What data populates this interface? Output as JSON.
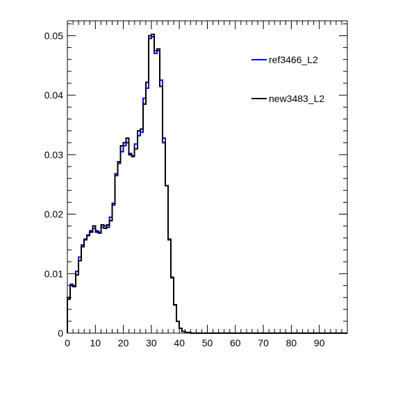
{
  "chart_data": {
    "type": "line",
    "title": "",
    "xlabel": "",
    "ylabel": "",
    "xlim": [
      0,
      100
    ],
    "ylim": [
      0,
      0.0525
    ],
    "grid": false,
    "legend_position": "top-right",
    "xticks": [
      0,
      10,
      20,
      30,
      40,
      50,
      60,
      70,
      80,
      90
    ],
    "yticks": [
      0,
      0.01,
      0.02,
      0.03,
      0.04,
      0.05
    ],
    "xtick_labels": [
      "0",
      "10",
      "20",
      "30",
      "40",
      "50",
      "60",
      "70",
      "80",
      "90"
    ],
    "ytick_labels": [
      "0",
      "0.01",
      "0.02",
      "0.03",
      "0.04",
      "0.05"
    ],
    "bin_width": 1,
    "x": [
      0,
      1,
      2,
      3,
      4,
      5,
      6,
      7,
      8,
      9,
      10,
      11,
      12,
      13,
      14,
      15,
      16,
      17,
      18,
      19,
      20,
      21,
      22,
      23,
      24,
      25,
      26,
      27,
      28,
      29,
      30,
      31,
      32,
      33,
      34,
      35,
      36,
      37,
      38,
      39,
      40,
      41,
      42,
      43,
      44,
      45,
      46,
      47,
      48,
      49
    ],
    "series": [
      {
        "name": "ref3466_L2",
        "color": "#0000ff",
        "values": [
          0.006,
          0.0082,
          0.008,
          0.0104,
          0.0128,
          0.0148,
          0.0158,
          0.0165,
          0.0172,
          0.0176,
          0.0172,
          0.0168,
          0.0178,
          0.018,
          0.0178,
          0.0195,
          0.0215,
          0.0265,
          0.0285,
          0.0305,
          0.0315,
          0.032,
          0.0302,
          0.0298,
          0.0318,
          0.0332,
          0.0338,
          0.0395,
          0.0412,
          0.0495,
          0.0498,
          0.047,
          0.0475,
          0.0425,
          0.0328,
          0.0248,
          0.0158,
          0.0093,
          0.0047,
          0.002,
          0.0008,
          0.0003,
          0.0001,
          0.0001,
          0.0,
          0.0,
          0.0,
          0.0,
          0.0,
          0.0
        ]
      },
      {
        "name": "new3483_L2",
        "color": "#000000",
        "values": [
          0.0057,
          0.008,
          0.0078,
          0.0098,
          0.0122,
          0.0145,
          0.0157,
          0.0164,
          0.017,
          0.018,
          0.017,
          0.017,
          0.0182,
          0.0176,
          0.0182,
          0.0189,
          0.0218,
          0.0268,
          0.0288,
          0.0315,
          0.032,
          0.0328,
          0.03,
          0.0297,
          0.031,
          0.034,
          0.0343,
          0.0385,
          0.0422,
          0.05,
          0.0502,
          0.0475,
          0.0478,
          0.0415,
          0.032,
          0.0248,
          0.0157,
          0.0094,
          0.0048,
          0.002,
          0.0008,
          0.0003,
          0.0001,
          0.0001,
          0.0,
          0.0,
          0.0,
          0.0,
          0.0,
          0.0
        ]
      }
    ]
  }
}
